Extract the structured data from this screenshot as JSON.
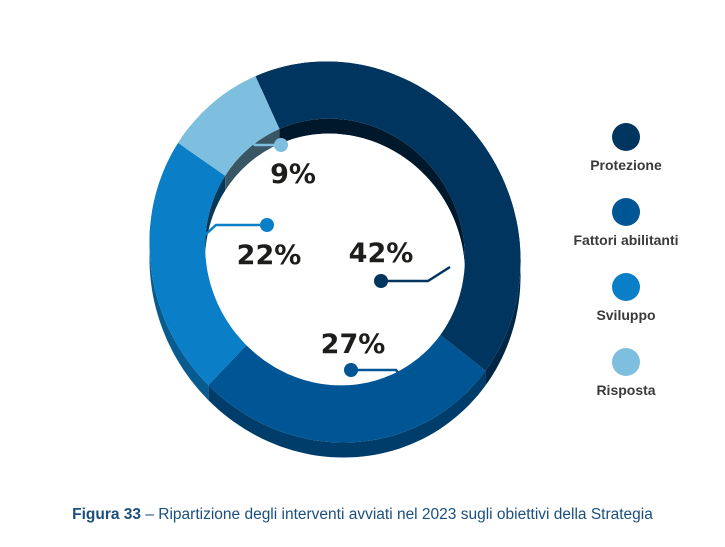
{
  "chart_data": {
    "type": "pie",
    "style": "donut-3d",
    "categories": [
      "Protezione",
      "Fattori abilitanti",
      "Sviluppo",
      "Risposta"
    ],
    "values": [
      42,
      27,
      22,
      9
    ],
    "value_labels": [
      "42%",
      "27%",
      "22%",
      "9%"
    ],
    "colors": [
      "#003560",
      "#005594",
      "#0a7fc7",
      "#7ebfdf"
    ],
    "legend_position": "right"
  },
  "caption": {
    "figure": "Figura 33",
    "separator": " – ",
    "text": "Ripartizione degli interventi avviati nel 2023 sugli obiettivi della Strategia"
  }
}
